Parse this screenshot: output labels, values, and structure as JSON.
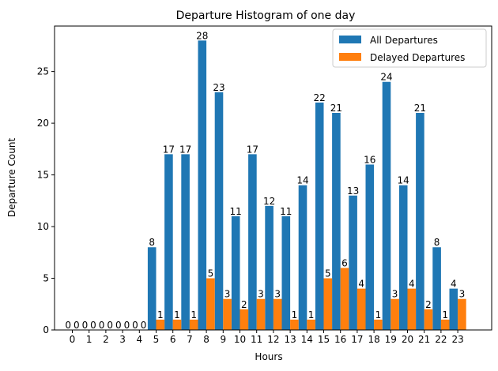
{
  "chart_data": {
    "type": "bar",
    "title": "Departure Histogram of one day",
    "xlabel": "Hours",
    "ylabel": "Departure Count",
    "categories": [
      "0",
      "1",
      "2",
      "3",
      "4",
      "5",
      "6",
      "7",
      "8",
      "9",
      "10",
      "11",
      "12",
      "13",
      "14",
      "15",
      "16",
      "17",
      "18",
      "19",
      "20",
      "21",
      "22",
      "23"
    ],
    "series": [
      {
        "name": "All Departures",
        "color": "#1f77b4",
        "values": [
          0,
          0,
          0,
          0,
          0,
          8,
          17,
          17,
          28,
          23,
          11,
          17,
          12,
          11,
          14,
          22,
          21,
          13,
          16,
          24,
          14,
          21,
          8,
          4
        ]
      },
      {
        "name": "Delayed Departures",
        "color": "#ff7f0e",
        "values": [
          0,
          0,
          0,
          0,
          0,
          1,
          1,
          1,
          5,
          3,
          2,
          3,
          3,
          1,
          1,
          5,
          6,
          4,
          1,
          3,
          4,
          2,
          1,
          3
        ]
      }
    ],
    "yticks": [
      0,
      5,
      10,
      15,
      20,
      25
    ],
    "ylim": [
      0,
      29.4
    ],
    "legend_position": "top-right",
    "grid": false
  }
}
